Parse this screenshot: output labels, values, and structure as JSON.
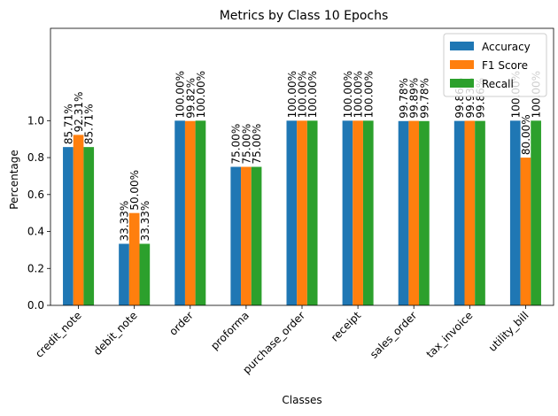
{
  "chart_data": {
    "type": "bar",
    "title": "Metrics by Class 10 Epochs",
    "xlabel": "Classes",
    "ylabel": "Percentage",
    "categories": [
      "credit_note",
      "debit_note",
      "order",
      "proforma",
      "purchase_order",
      "receipt",
      "sales_order",
      "tax_invoice",
      "utility_bill"
    ],
    "series": [
      {
        "name": "Accuracy",
        "color": "#1f77b4",
        "values": [
          0.8571,
          0.3333,
          1.0,
          0.75,
          1.0,
          1.0,
          0.9978,
          0.9986,
          1.0
        ],
        "labels": [
          "85.71%",
          "33.33%",
          "100.00%",
          "75.00%",
          "100.00%",
          "100.00%",
          "99.78%",
          "99.86%",
          "100.00%"
        ]
      },
      {
        "name": "F1 Score",
        "color": "#ff7f0e",
        "values": [
          0.9231,
          0.5,
          0.9982,
          0.75,
          1.0,
          1.0,
          0.9989,
          0.9993,
          0.8
        ],
        "labels": [
          "92.31%",
          "50.00%",
          "99.82%",
          "75.00%",
          "100.00%",
          "100.00%",
          "99.89%",
          "99.93%",
          "80.00%"
        ]
      },
      {
        "name": "Recall",
        "color": "#2ca02c",
        "values": [
          0.8571,
          0.3333,
          1.0,
          0.75,
          1.0,
          1.0,
          0.9978,
          0.9986,
          1.0
        ],
        "labels": [
          "85.71%",
          "33.33%",
          "100.00%",
          "75.00%",
          "100.00%",
          "100.00%",
          "99.78%",
          "99.86%",
          "100.00%"
        ]
      }
    ],
    "ylim": [
      0,
      1.5
    ],
    "yticks": [
      "0.0",
      "0.2",
      "0.4",
      "0.6",
      "0.8",
      "1.0"
    ],
    "legend_position": "upper right",
    "grid": false
  }
}
